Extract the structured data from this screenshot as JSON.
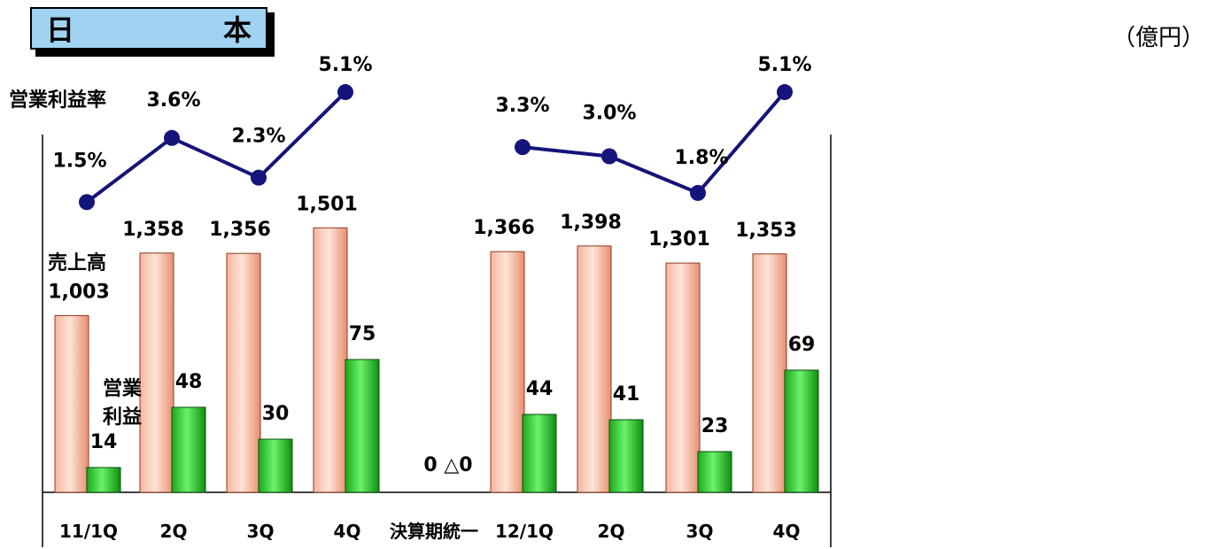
{
  "header": {
    "region_left": "日",
    "region_right": "本",
    "unit": "（億円）"
  },
  "labels": {
    "margin": "営業利益率",
    "sales": "売上高",
    "op_line1": "営業",
    "op_line2": "利益",
    "gap_values": "0 △0"
  },
  "colors": {
    "sales": "#f5a58a",
    "op": "#22c022",
    "line": "#14147a"
  },
  "chart_data": {
    "type": "bar",
    "categories": [
      "11/1Q",
      "2Q",
      "3Q",
      "4Q",
      "決算期統一",
      "12/1Q",
      "2Q",
      "3Q",
      "4Q"
    ],
    "series": [
      {
        "name": "売上高",
        "values": [
          1003,
          1358,
          1356,
          1501,
          0,
          1366,
          1398,
          1301,
          1353
        ],
        "labels": [
          "1,003",
          "1,358",
          "1,356",
          "1,501",
          "",
          "1,366",
          "1,398",
          "1,301",
          "1,353"
        ]
      },
      {
        "name": "営業利益",
        "values": [
          14,
          48,
          30,
          75,
          0,
          44,
          41,
          23,
          69
        ],
        "labels": [
          "14",
          "48",
          "30",
          "75",
          "",
          "44",
          "41",
          "23",
          "69"
        ]
      },
      {
        "name": "営業利益率",
        "type": "line",
        "values": [
          1.5,
          3.6,
          2.3,
          5.1,
          null,
          3.3,
          3.0,
          1.8,
          5.1
        ],
        "labels": [
          "1.5%",
          "3.6%",
          "2.3%",
          "5.1%",
          "",
          "3.3%",
          "3.0%",
          "1.8%",
          "5.1%"
        ]
      }
    ]
  }
}
